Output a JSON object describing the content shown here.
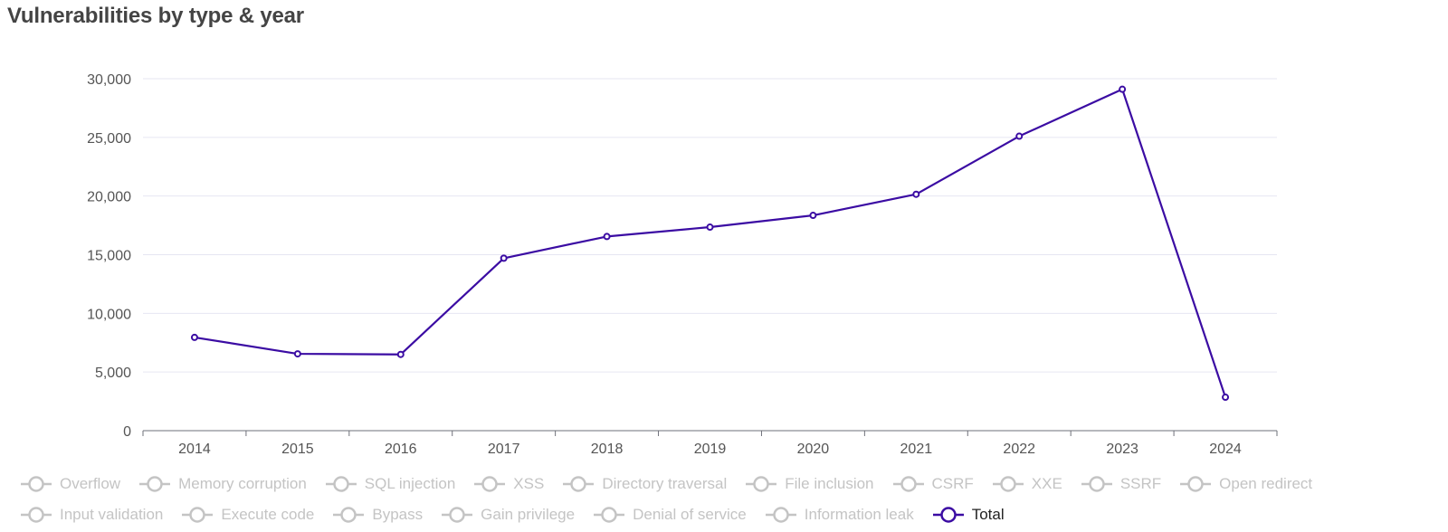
{
  "chart_data": {
    "type": "line",
    "title": "Vulnerabilities by type & year",
    "categories": [
      "2014",
      "2015",
      "2016",
      "2017",
      "2018",
      "2019",
      "2020",
      "2021",
      "2022",
      "2023",
      "2024"
    ],
    "ylim": [
      0,
      30000
    ],
    "yticks": [
      0,
      5000,
      10000,
      15000,
      20000,
      25000,
      30000
    ],
    "ytick_labels": [
      "0",
      "5,000",
      "10,000",
      "15,000",
      "20,000",
      "25,000",
      "30,000"
    ],
    "grid": true,
    "legend_position": "bottom",
    "series": [
      {
        "name": "Total",
        "color": "#3b0ca3",
        "values": [
          7950,
          6550,
          6500,
          14700,
          16550,
          17350,
          18350,
          20150,
          25100,
          29100,
          2850
        ]
      }
    ],
    "legend": {
      "row1": [
        "Overflow",
        "Memory corruption",
        "SQL injection",
        "XSS",
        "Directory traversal",
        "File inclusion",
        "CSRF",
        "XXE",
        "SSRF",
        "Open redirect"
      ],
      "row2": [
        "Input validation",
        "Execute code",
        "Bypass",
        "Gain privilege",
        "Denial of service",
        "Information leak",
        "Total"
      ],
      "active": "Total",
      "inactive_color": "#c4c4c4"
    }
  }
}
